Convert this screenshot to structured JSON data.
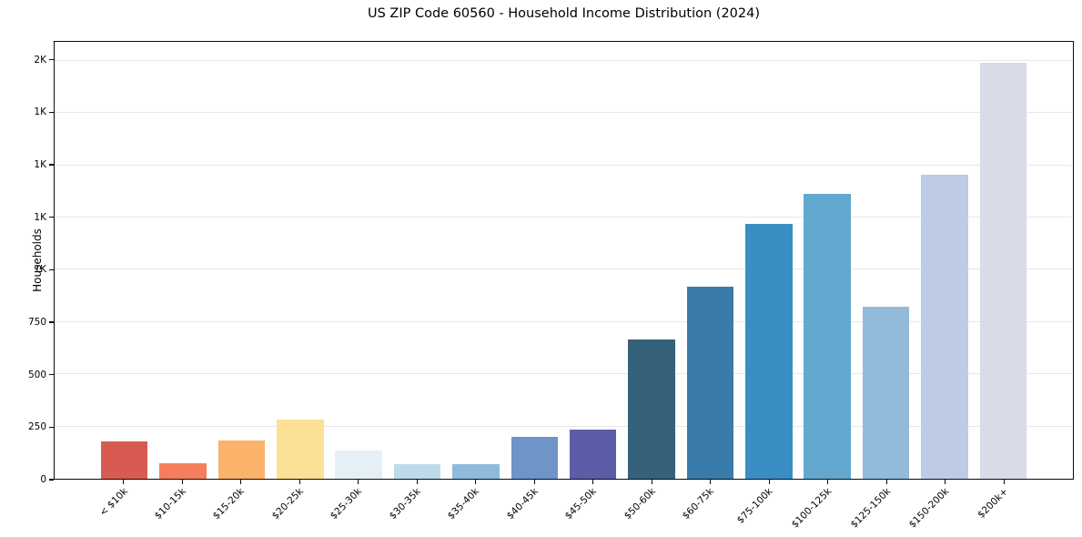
{
  "chart_data": {
    "type": "bar",
    "title": "US ZIP Code 60560 - Household Income Distribution (2024)",
    "xlabel": "",
    "ylabel": "Households",
    "categories": [
      "< $10k",
      "$10-15k",
      "$15-20k",
      "$20-25k",
      "$25-30k",
      "$30-35k",
      "$35-40k",
      "$40-45k",
      "$45-50k",
      "$50-60k",
      "$60-75k",
      "$75-100k",
      "$100-125k",
      "$125-150k",
      "$150-200k",
      "$200k+"
    ],
    "values": [
      180,
      75,
      183,
      285,
      137,
      70,
      70,
      200,
      235,
      665,
      920,
      1220,
      1365,
      825,
      1455,
      1990
    ],
    "bar_colors": [
      "#d85b52",
      "#f47e5d",
      "#fbb26a",
      "#fce096",
      "#e5eff6",
      "#bddbea",
      "#8ebbdc",
      "#6e94c8",
      "#5b5da9",
      "#35617a",
      "#3a7ca9",
      "#3a8ec4",
      "#62a8ce",
      "#92bbdb",
      "#bdcbe4",
      "#d9dbe9"
    ],
    "yticks": [
      {
        "value": 0,
        "label": "0"
      },
      {
        "value": 250,
        "label": "250"
      },
      {
        "value": 500,
        "label": "500"
      },
      {
        "value": 750,
        "label": "750"
      },
      {
        "value": 1000,
        "label": "1K"
      },
      {
        "value": 1250,
        "label": "1K"
      },
      {
        "value": 1500,
        "label": "1K"
      },
      {
        "value": 1750,
        "label": "1K"
      },
      {
        "value": 2000,
        "label": "2K"
      }
    ],
    "ylim": [
      0,
      2090
    ],
    "grid": "horizontal",
    "legend": "none",
    "colors": {
      "grid": "#e7e7ea",
      "spine": "#0a0a0a",
      "text": "#000000",
      "background": "#ffffff"
    }
  }
}
